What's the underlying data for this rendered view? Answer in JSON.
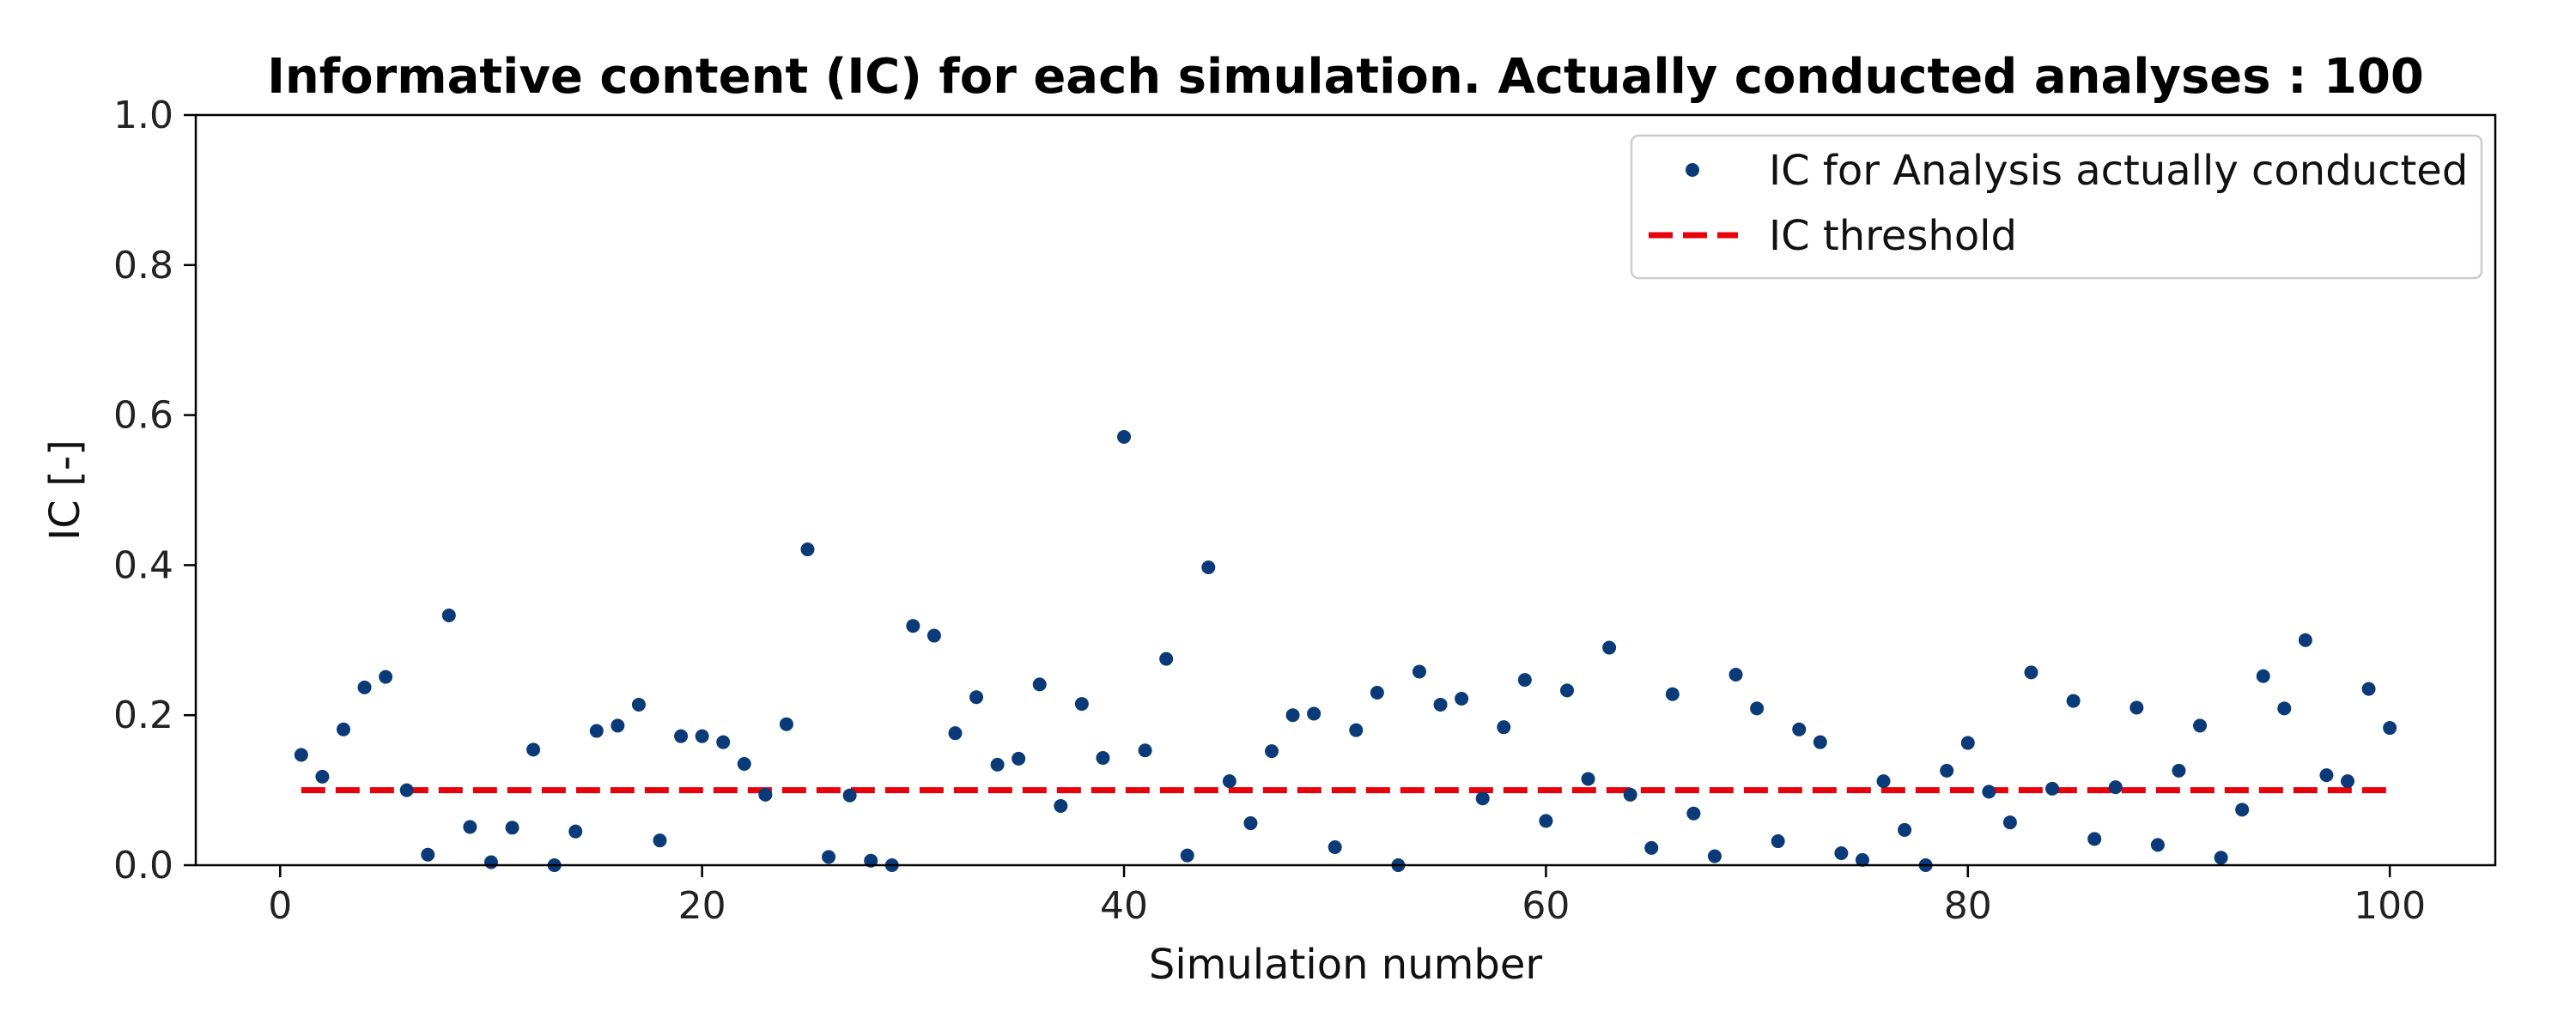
{
  "chart_data": {
    "type": "scatter",
    "title": "Informative content (IC) for each simulation. Actually conducted analyses : 100",
    "xlabel": "Simulation number",
    "ylabel": "IC [-]",
    "xlim": [
      -4,
      105
    ],
    "ylim": [
      0.0,
      1.0
    ],
    "xticks": [
      0,
      20,
      40,
      60,
      80,
      100
    ],
    "yticks": [
      0.0,
      0.2,
      0.4,
      0.6,
      0.8,
      1.0
    ],
    "xtick_labels": [
      "0",
      "20",
      "40",
      "60",
      "80",
      "100"
    ],
    "ytick_labels": [
      "0.0",
      "0.2",
      "0.4",
      "0.6",
      "0.8",
      "1.0"
    ],
    "grid": false,
    "legend_position": "top-right",
    "series": [
      {
        "name": "IC for Analysis actually conducted",
        "kind": "scatter",
        "color": "#0b3a78",
        "x": [
          1,
          2,
          3,
          4,
          5,
          6,
          7,
          8,
          9,
          10,
          11,
          12,
          13,
          14,
          15,
          16,
          17,
          18,
          19,
          20,
          21,
          22,
          23,
          24,
          25,
          26,
          27,
          28,
          29,
          30,
          31,
          32,
          33,
          34,
          35,
          36,
          37,
          38,
          39,
          40,
          41,
          42,
          43,
          44,
          45,
          46,
          47,
          48,
          49,
          50,
          51,
          52,
          53,
          54,
          55,
          56,
          57,
          58,
          59,
          60,
          61,
          62,
          63,
          64,
          65,
          66,
          67,
          68,
          69,
          70,
          71,
          72,
          73,
          74,
          75,
          76,
          77,
          78,
          79,
          80,
          81,
          82,
          83,
          84,
          85,
          86,
          87,
          88,
          89,
          90,
          91,
          92,
          93,
          94,
          95,
          96,
          97,
          98,
          99,
          100
        ],
        "y": [
          0.147,
          0.118,
          0.181,
          0.237,
          0.251,
          0.1,
          0.014,
          0.333,
          0.051,
          0.004,
          0.05,
          0.154,
          0.0,
          0.045,
          0.179,
          0.186,
          0.214,
          0.033,
          0.172,
          0.172,
          0.164,
          0.135,
          0.094,
          0.188,
          0.421,
          0.011,
          0.093,
          0.006,
          0.0,
          0.319,
          0.306,
          0.176,
          0.224,
          0.134,
          0.142,
          0.241,
          0.079,
          0.215,
          0.143,
          0.571,
          0.153,
          0.275,
          0.013,
          0.397,
          0.112,
          0.056,
          0.152,
          0.2,
          0.202,
          0.024,
          0.18,
          0.23,
          0.0,
          0.258,
          0.214,
          0.222,
          0.089,
          0.184,
          0.247,
          0.059,
          0.233,
          0.115,
          0.29,
          0.094,
          0.023,
          0.228,
          0.069,
          0.012,
          0.254,
          0.209,
          0.032,
          0.181,
          0.164,
          0.016,
          0.007,
          0.112,
          0.047,
          0.0,
          0.126,
          0.163,
          0.098,
          0.057,
          0.257,
          0.102,
          0.219,
          0.035,
          0.104,
          0.21,
          0.027,
          0.126,
          0.186,
          0.01,
          0.074,
          0.252,
          0.209,
          0.3,
          0.12,
          0.112,
          0.235,
          0.183
        ]
      },
      {
        "name": "IC threshold",
        "kind": "line",
        "style": "dashed",
        "color": "#e8000b",
        "x": [
          1,
          100
        ],
        "y": [
          0.1,
          0.1
        ]
      }
    ]
  }
}
